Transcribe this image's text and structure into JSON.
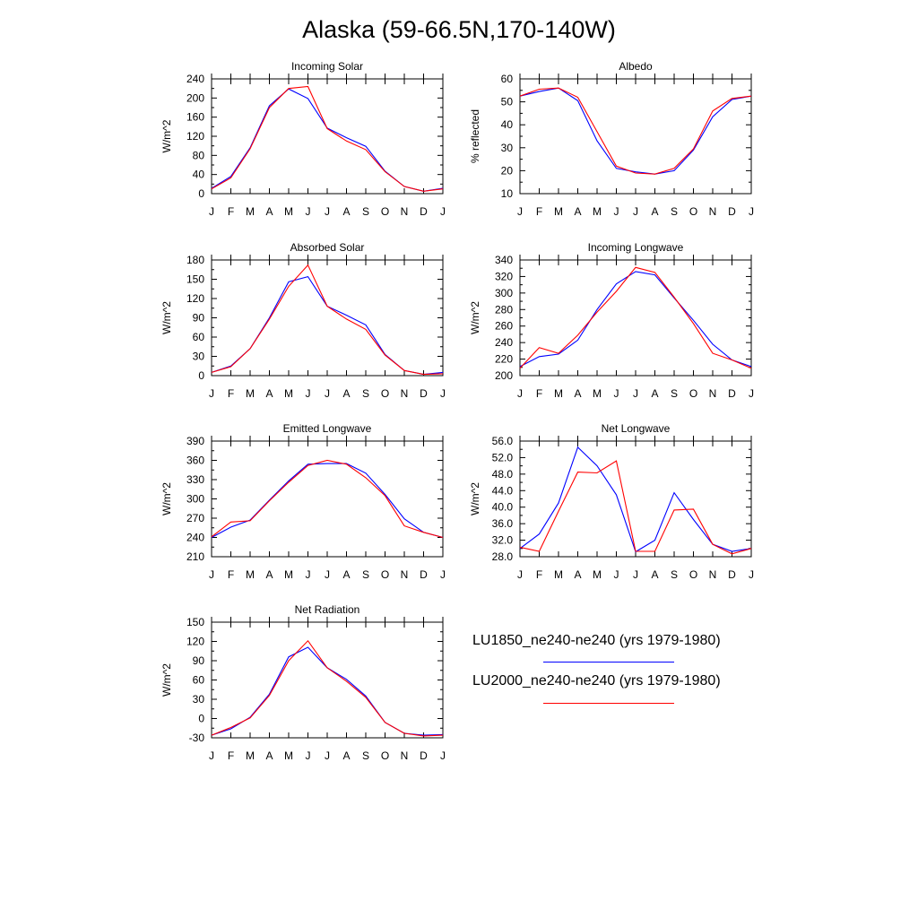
{
  "title": "Alaska (59-66.5N,170-140W)",
  "months": [
    "J",
    "F",
    "M",
    "A",
    "M",
    "J",
    "J",
    "A",
    "S",
    "O",
    "N",
    "D",
    "J"
  ],
  "legend": [
    {
      "label": "LU1850_ne240-ne240 (yrs 1979-1980)",
      "color": "#0000ff"
    },
    {
      "label": "LU2000_ne240-ne240 (yrs 1979-1980)",
      "color": "#ff0000"
    }
  ],
  "chart_data": [
    {
      "type": "line",
      "title": "Incoming Solar",
      "ylabel": "W/m^2",
      "ylim": [
        0,
        240
      ],
      "yticks": [
        "0",
        "40",
        "80",
        "120",
        "160",
        "200",
        "240"
      ],
      "x": [
        "J",
        "F",
        "M",
        "A",
        "M",
        "J",
        "J",
        "A",
        "S",
        "O",
        "N",
        "D",
        "J"
      ],
      "series": [
        {
          "color": "#0000ff",
          "values": [
            11,
            36,
            96,
            184,
            219,
            199,
            137,
            117,
            99,
            47,
            15,
            5,
            11
          ]
        },
        {
          "color": "#ff0000",
          "values": [
            10,
            33,
            94,
            180,
            220,
            224,
            136,
            110,
            92,
            46,
            15,
            5,
            10
          ]
        }
      ]
    },
    {
      "type": "line",
      "title": "Albedo",
      "ylabel": "% reflected",
      "ylim": [
        10,
        60
      ],
      "yticks": [
        "10",
        "20",
        "30",
        "40",
        "50",
        "60"
      ],
      "x": [
        "J",
        "F",
        "M",
        "A",
        "M",
        "J",
        "J",
        "A",
        "S",
        "O",
        "N",
        "D",
        "J"
      ],
      "series": [
        {
          "color": "#0000ff",
          "values": [
            52.5,
            54.5,
            56,
            50.5,
            33,
            21,
            19.5,
            18.5,
            20,
            29,
            43.5,
            51,
            52.5
          ]
        },
        {
          "color": "#ff0000",
          "values": [
            52.5,
            55.5,
            56,
            52,
            37,
            22,
            19,
            18.5,
            21,
            29.5,
            46,
            51.5,
            52.5
          ]
        }
      ]
    },
    {
      "type": "line",
      "title": "Absorbed Solar",
      "ylabel": "W/m^2",
      "ylim": [
        0,
        180
      ],
      "yticks": [
        "0",
        "30",
        "60",
        "90",
        "120",
        "150",
        "180"
      ],
      "x": [
        "J",
        "F",
        "M",
        "A",
        "M",
        "J",
        "J",
        "A",
        "S",
        "O",
        "N",
        "D",
        "J"
      ],
      "series": [
        {
          "color": "#0000ff",
          "values": [
            5,
            15,
            42,
            90,
            146,
            154,
            108,
            94,
            79,
            33,
            8,
            2,
            5
          ]
        },
        {
          "color": "#ff0000",
          "values": [
            5,
            14,
            42,
            88,
            139,
            172,
            108,
            88,
            72,
            32,
            8,
            2,
            3
          ]
        }
      ]
    },
    {
      "type": "line",
      "title": "Incoming Longwave",
      "ylabel": "W/m^2",
      "ylim": [
        200,
        340
      ],
      "yticks": [
        "200",
        "220",
        "240",
        "260",
        "280",
        "300",
        "320",
        "340"
      ],
      "x": [
        "J",
        "F",
        "M",
        "A",
        "M",
        "J",
        "J",
        "A",
        "S",
        "O",
        "N",
        "D",
        "J"
      ],
      "series": [
        {
          "color": "#0000ff",
          "values": [
            211,
            223,
            226,
            243,
            280,
            311,
            326,
            322,
            294,
            267,
            238,
            219,
            211
          ]
        },
        {
          "color": "#ff0000",
          "values": [
            209,
            234,
            227,
            249,
            277,
            302,
            331,
            325,
            295,
            263,
            227,
            219,
            209
          ]
        }
      ]
    },
    {
      "type": "line",
      "title": "Emitted Longwave",
      "ylabel": "W/m^2",
      "ylim": [
        210,
        390
      ],
      "yticks": [
        "210",
        "240",
        "270",
        "300",
        "330",
        "360",
        "390"
      ],
      "x": [
        "J",
        "F",
        "M",
        "A",
        "M",
        "J",
        "J",
        "A",
        "S",
        "O",
        "N",
        "D",
        "J"
      ],
      "series": [
        {
          "color": "#0000ff",
          "values": [
            240,
            256,
            267,
            298,
            328,
            354,
            355,
            355,
            340,
            307,
            269,
            248,
            240
          ]
        },
        {
          "color": "#ff0000",
          "values": [
            241,
            264,
            266,
            297,
            326,
            352,
            360,
            354,
            333,
            305,
            258,
            248,
            240
          ]
        }
      ]
    },
    {
      "type": "line",
      "title": "Net Longwave",
      "ylabel": "W/m^2",
      "ylim": [
        28,
        56
      ],
      "yticks": [
        "28.0",
        "32.0",
        "36.0",
        "40.0",
        "44.0",
        "48.0",
        "52.0",
        "56.0"
      ],
      "x": [
        "J",
        "F",
        "M",
        "A",
        "M",
        "J",
        "J",
        "A",
        "S",
        "O",
        "N",
        "D",
        "J"
      ],
      "series": [
        {
          "color": "#0000ff",
          "values": [
            30,
            33.5,
            41,
            54.5,
            50,
            43,
            29.2,
            32,
            43.5,
            37,
            31,
            29.3,
            30
          ]
        },
        {
          "color": "#ff0000",
          "values": [
            30.3,
            29.3,
            39,
            48.5,
            48.3,
            51.2,
            29.3,
            29.3,
            39.3,
            39.5,
            31,
            28.7,
            30
          ]
        }
      ]
    },
    {
      "type": "line",
      "title": "Net Radiation",
      "ylabel": "W/m^2",
      "ylim": [
        -30,
        150
      ],
      "yticks": [
        "-30",
        "0",
        "30",
        "60",
        "90",
        "120",
        "150"
      ],
      "x": [
        "J",
        "F",
        "M",
        "A",
        "M",
        "J",
        "J",
        "A",
        "S",
        "O",
        "N",
        "D",
        "J"
      ],
      "series": [
        {
          "color": "#0000ff",
          "values": [
            -26,
            -16,
            2,
            38,
            96,
            111,
            79,
            61,
            35,
            -6,
            -23,
            -26,
            -25
          ]
        },
        {
          "color": "#ff0000",
          "values": [
            -26,
            -14,
            1,
            36,
            90,
            121,
            79,
            58,
            33,
            -6,
            -23,
            -27,
            -26
          ]
        }
      ]
    }
  ]
}
